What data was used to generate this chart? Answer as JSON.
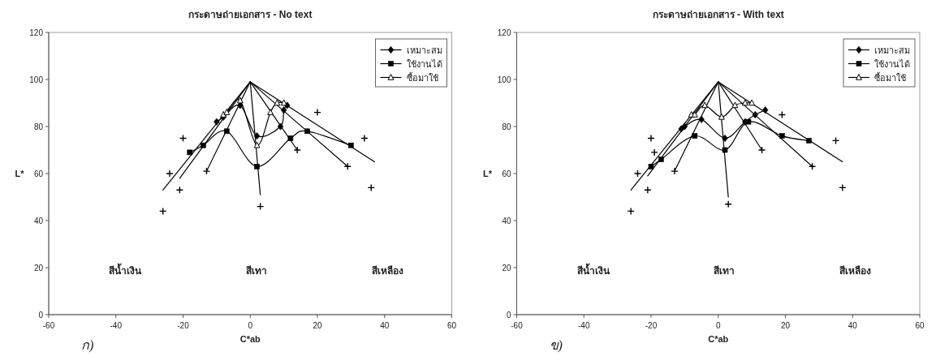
{
  "chart_data": [
    {
      "type": "line",
      "title": "กระดาษถ่ายเอกสาร - No text",
      "xlabel": "C*ab",
      "ylabel": "L*",
      "xlim": [
        -60,
        60
      ],
      "ylim": [
        0,
        120
      ],
      "xticks": [
        -60,
        -40,
        -20,
        0,
        20,
        40,
        60
      ],
      "yticks": [
        0,
        20,
        40,
        60,
        80,
        100,
        120
      ],
      "legend": "top right",
      "series": [
        {
          "type": "line",
          "marker": "none",
          "color": "#000000",
          "x": [
            0,
            -26
          ],
          "values": [
            99,
            53
          ]
        },
        {
          "type": "line",
          "marker": "none",
          "color": "#000000",
          "x": [
            0,
            -21
          ],
          "values": [
            99,
            58
          ]
        },
        {
          "type": "line",
          "marker": "none",
          "color": "#000000",
          "x": [
            0,
            -13
          ],
          "values": [
            99,
            61
          ]
        },
        {
          "type": "line",
          "marker": "none",
          "color": "#000000",
          "x": [
            0,
            3
          ],
          "values": [
            99,
            51
          ]
        },
        {
          "type": "line",
          "marker": "none",
          "color": "#000000",
          "x": [
            0,
            14
          ],
          "values": [
            99,
            70
          ]
        },
        {
          "type": "line",
          "marker": "none",
          "color": "#000000",
          "x": [
            0,
            29
          ],
          "values": [
            99,
            63
          ]
        },
        {
          "type": "line",
          "marker": "none",
          "color": "#000000",
          "x": [
            0,
            37
          ],
          "values": [
            99,
            65
          ]
        },
        {
          "name": "เหมาะสม",
          "type": "line",
          "marker": "diamond",
          "color": "#000000",
          "x": [
            -10,
            -8,
            -3,
            2,
            9,
            10,
            11
          ],
          "values": [
            82,
            84,
            89,
            76,
            80,
            87,
            89
          ]
        },
        {
          "name": "ใช้งานได้",
          "type": "line",
          "marker": "square",
          "color": "#000000",
          "x": [
            -18,
            -14,
            -7,
            2,
            12,
            17,
            30
          ],
          "values": [
            69,
            72,
            78,
            63,
            75,
            78,
            72
          ]
        },
        {
          "name": "ซื้อมาใช้",
          "type": "line",
          "marker": "triangle",
          "color": "#000000",
          "x": [
            -8,
            -7,
            -3,
            2,
            6,
            8,
            10
          ],
          "values": [
            85,
            86,
            91,
            72,
            86,
            90,
            90
          ]
        },
        {
          "type": "scatter",
          "marker": "cross",
          "color": "#000000",
          "x": [
            -26,
            -24,
            -21,
            -20,
            -13,
            3,
            14,
            20,
            29,
            34,
            36
          ],
          "values": [
            44,
            60,
            53,
            75,
            61,
            46,
            70,
            86,
            63,
            75,
            54
          ]
        }
      ],
      "annotations": [
        "สีน้ำเงิน",
        "สีเทา",
        "สีเหลือง",
        "ก)"
      ]
    },
    {
      "type": "line",
      "title": "กระดาษถ่ายเอกสาร - With text",
      "xlabel": "C*ab",
      "ylabel": "L*",
      "xlim": [
        -60,
        60
      ],
      "ylim": [
        0,
        120
      ],
      "xticks": [
        -60,
        -40,
        -20,
        0,
        20,
        40,
        60
      ],
      "yticks": [
        0,
        20,
        40,
        60,
        80,
        100,
        120
      ],
      "legend": "top right",
      "series": [
        {
          "type": "line",
          "marker": "none",
          "color": "#000000",
          "x": [
            0,
            -26
          ],
          "values": [
            99,
            53
          ]
        },
        {
          "type": "line",
          "marker": "none",
          "color": "#000000",
          "x": [
            0,
            -21
          ],
          "values": [
            99,
            59
          ]
        },
        {
          "type": "line",
          "marker": "none",
          "color": "#000000",
          "x": [
            0,
            -13
          ],
          "values": [
            99,
            61
          ]
        },
        {
          "type": "line",
          "marker": "none",
          "color": "#000000",
          "x": [
            0,
            3
          ],
          "values": [
            99,
            50
          ]
        },
        {
          "type": "line",
          "marker": "none",
          "color": "#000000",
          "x": [
            0,
            13
          ],
          "values": [
            99,
            70
          ]
        },
        {
          "type": "line",
          "marker": "none",
          "color": "#000000",
          "x": [
            0,
            28
          ],
          "values": [
            99,
            63
          ]
        },
        {
          "type": "line",
          "marker": "none",
          "color": "#000000",
          "x": [
            0,
            37
          ],
          "values": [
            99,
            65
          ]
        },
        {
          "name": "เหมาะสม",
          "type": "line",
          "marker": "diamond",
          "color": "#000000",
          "x": [
            -11,
            -10,
            -5,
            2,
            8,
            11,
            14
          ],
          "values": [
            79,
            80,
            83,
            75,
            82,
            85,
            87
          ]
        },
        {
          "name": "ใช้งานได้",
          "type": "line",
          "marker": "square",
          "color": "#000000",
          "x": [
            -20,
            -17,
            -7,
            2,
            9,
            19,
            27
          ],
          "values": [
            63,
            66,
            76,
            70,
            82,
            76,
            74
          ]
        },
        {
          "name": "ซื้อมาใช้",
          "type": "line",
          "marker": "triangle",
          "color": "#000000",
          "x": [
            -8,
            -7,
            -4,
            1,
            5,
            8,
            10
          ],
          "values": [
            85,
            85,
            89,
            84,
            89,
            90,
            90
          ]
        },
        {
          "type": "scatter",
          "marker": "cross",
          "color": "#000000",
          "x": [
            -26,
            -24,
            -21,
            -20,
            -19,
            -13,
            3,
            13,
            19,
            28,
            35,
            37
          ],
          "values": [
            44,
            60,
            53,
            75,
            69,
            61,
            47,
            70,
            85,
            63,
            74,
            54
          ]
        }
      ],
      "annotations": [
        "สีน้ำเงิน",
        "สีเทา",
        "สีเหลือง",
        "ข)"
      ]
    }
  ]
}
